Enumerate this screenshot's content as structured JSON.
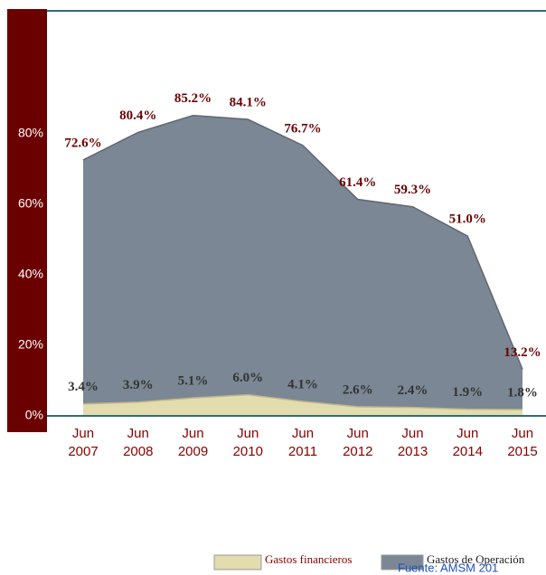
{
  "chart_data": {
    "type": "area",
    "categories": [
      "Jun 2007",
      "Jun 2008",
      "Jun 2009",
      "Jun 2010",
      "Jun 2011",
      "Jun 2012",
      "Jun 2013",
      "Jun 2014",
      "Jun 2015"
    ],
    "series": [
      {
        "name": "Gastos de Operación",
        "color": "#7b8794",
        "values": [
          72.6,
          80.4,
          85.2,
          84.1,
          76.7,
          61.4,
          59.3,
          51.0,
          13.2
        ],
        "value_labels": [
          "72.6%",
          "80.4%",
          "85.2%",
          "84.1%",
          "76.7%",
          "61.4%",
          "59.3%",
          "51.0%",
          "13.2%"
        ]
      },
      {
        "name": "Gastos financieros",
        "color": "#e3dcae",
        "values": [
          3.4,
          3.9,
          5.1,
          6.0,
          4.1,
          2.6,
          2.4,
          1.9,
          1.8
        ],
        "value_labels": [
          "3.4%",
          "3.9%",
          "5.1%",
          "6.0%",
          "4.1%",
          "2.6%",
          "2.4%",
          "1.9%",
          "1.8%"
        ]
      }
    ],
    "ylim": [
      0,
      80
    ],
    "yticks": [
      {
        "value": 0,
        "label": "0%"
      },
      {
        "value": 20,
        "label": "20%"
      },
      {
        "value": 40,
        "label": "40%"
      },
      {
        "value": 60,
        "label": "60%"
      },
      {
        "value": 80,
        "label": "80%"
      }
    ],
    "source": "Fuente: AMSM   201"
  }
}
